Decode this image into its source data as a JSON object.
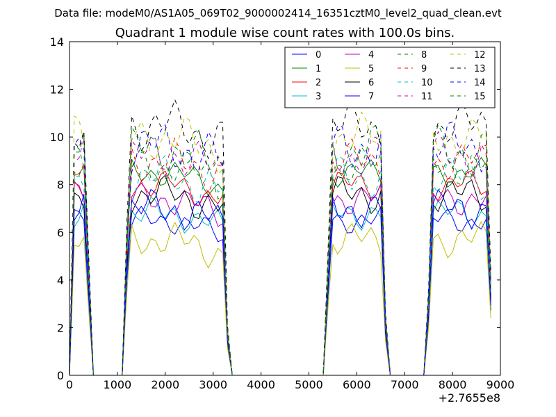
{
  "chart_data": {
    "type": "line",
    "supertitle": "Data file: modeM0/AS1A05_069T02_9000002414_16351cztM0_level2_quad_clean.evt",
    "title": "Quadrant 1 module wise count rates with 100.0s bins.",
    "xlabel": "",
    "ylabel": "",
    "x_offset_label": "+2.7655e8",
    "xlim": [
      0,
      9000
    ],
    "ylim": [
      0,
      14
    ],
    "xticks": [
      0,
      1000,
      2000,
      3000,
      4000,
      5000,
      6000,
      7000,
      8000,
      9000
    ],
    "yticks": [
      0,
      2,
      4,
      6,
      8,
      10,
      12,
      14
    ],
    "grid": false,
    "legend_location": "top-right",
    "legend_columns": 4,
    "segments": [
      {
        "start": 100,
        "end": 300,
        "high_from": 100,
        "high_to": 300
      },
      {
        "start": 1200,
        "end": 3200,
        "high_from": 1300,
        "high_to": 3200
      },
      {
        "start": 5300,
        "end": 6500,
        "high_from": 5500,
        "high_to": 6500
      },
      {
        "start": 7500,
        "end": 8800,
        "high_from": 7600,
        "high_to": 8800
      }
    ],
    "series": [
      {
        "name": "0",
        "color": "#0000ff",
        "dash": "solid",
        "level": 6.5
      },
      {
        "name": "1",
        "color": "#008000",
        "dash": "solid",
        "level": 8.5
      },
      {
        "name": "2",
        "color": "#ff0000",
        "dash": "solid",
        "level": 8.0
      },
      {
        "name": "3",
        "color": "#00bfbf",
        "dash": "solid",
        "level": 6.8
      },
      {
        "name": "4",
        "color": "#bf00bf",
        "dash": "solid",
        "level": 7.4
      },
      {
        "name": "5",
        "color": "#bfbf00",
        "dash": "solid",
        "level": 5.7
      },
      {
        "name": "6",
        "color": "#000000",
        "dash": "solid",
        "level": 7.6
      },
      {
        "name": "7",
        "color": "#0000ff",
        "dash": "solid",
        "level": 7.0
      },
      {
        "name": "8",
        "color": "#008000",
        "dash": "dashed",
        "level": 8.8
      },
      {
        "name": "9",
        "color": "#ff0000",
        "dash": "dashed",
        "level": 9.0
      },
      {
        "name": "10",
        "color": "#00bfbf",
        "dash": "dashed",
        "level": 8.3
      },
      {
        "name": "11",
        "color": "#bf00bf",
        "dash": "dashed",
        "level": 9.2
      },
      {
        "name": "12",
        "color": "#bfbf00",
        "dash": "dashed",
        "level": 10.0
      },
      {
        "name": "13",
        "color": "#000000",
        "dash": "dashed",
        "level": 10.5
      },
      {
        "name": "14",
        "color": "#0000ff",
        "dash": "dashed",
        "level": 9.6
      },
      {
        "name": "15",
        "color": "#008000",
        "dash": "dashed",
        "level": 9.4
      }
    ]
  }
}
